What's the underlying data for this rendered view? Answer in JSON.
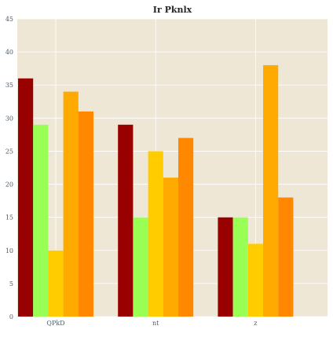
{
  "chart_data": {
    "type": "bar",
    "title": "Ir Pknlx",
    "xlabel": "",
    "ylabel": "",
    "categories": [
      "QPkD",
      "nt",
      "z"
    ],
    "ylim": [
      0,
      45
    ],
    "yticks": [
      0,
      5,
      10,
      15,
      20,
      25,
      30,
      35,
      40,
      45
    ],
    "grid": true,
    "legend": "none",
    "series": [
      {
        "color": "#990000",
        "values": [
          36,
          29,
          15
        ]
      },
      {
        "color": "#99ff55",
        "values": [
          29,
          15,
          15
        ]
      },
      {
        "color": "#ffcc00",
        "values": [
          10,
          25,
          11
        ]
      },
      {
        "color": "#ffaa00",
        "values": [
          34,
          21,
          38
        ]
      },
      {
        "color": "#ff8800",
        "values": [
          31,
          27,
          18
        ]
      }
    ],
    "colors": {
      "background": "#efe7d6",
      "grid": "#ffffff"
    }
  }
}
